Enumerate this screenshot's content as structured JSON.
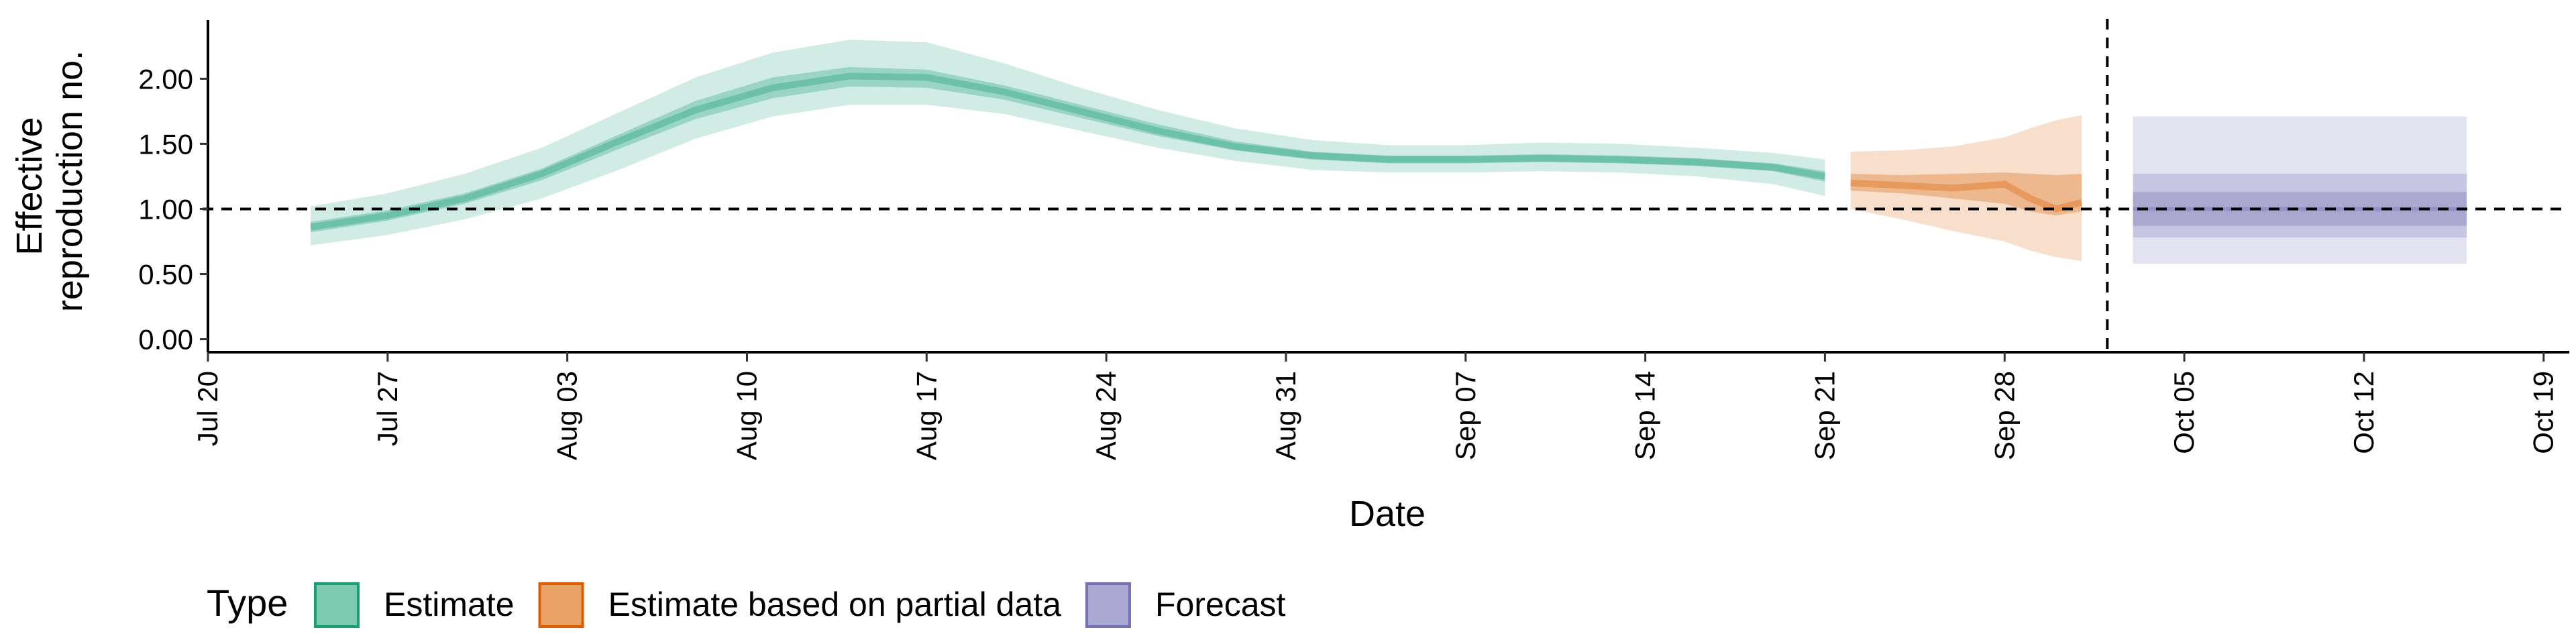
{
  "chart_data": {
    "type": "area",
    "title": "",
    "xlabel": "Date",
    "ylabel": "Effective\nreproduction no.",
    "ylabel_lines": [
      "Effective",
      "reproduction no."
    ],
    "x_ticks": [
      "2020-07-20",
      "2020-07-27",
      "2020-08-03",
      "2020-08-10",
      "2020-08-17",
      "2020-08-24",
      "2020-08-31",
      "2020-09-07",
      "2020-09-14",
      "2020-09-21",
      "2020-09-28",
      "2020-10-05",
      "2020-10-12",
      "2020-10-19"
    ],
    "x_tick_labels": [
      "Jul 20",
      "Jul 27",
      "Aug 03",
      "Aug 10",
      "Aug 17",
      "Aug 24",
      "Aug 31",
      "Sep 07",
      "Sep 14",
      "Sep 21",
      "Sep 28",
      "Oct 05",
      "Oct 12",
      "Oct 19"
    ],
    "y_ticks": [
      0,
      0.5,
      1.0,
      1.5,
      2.0
    ],
    "y_tick_labels": [
      "0.00",
      "0.50",
      "1.00",
      "1.50",
      "2.00"
    ],
    "xlim": [
      "2020-07-20",
      "2020-10-20"
    ],
    "ylim": [
      -0.1,
      2.45
    ],
    "reference_line_y": 1.0,
    "reference_line_x": "2020-10-02",
    "grid": false,
    "legend": {
      "title": "Type",
      "position": "bottom",
      "entries": [
        "Estimate",
        "Estimate based on partial data",
        "Forecast"
      ]
    },
    "colors": {
      "Estimate": "#1b9e77",
      "Estimate based on partial data": "#d95f02",
      "Forecast": "#7570b3"
    },
    "series": [
      {
        "name": "Estimate",
        "x": [
          "2020-07-24",
          "2020-07-27",
          "2020-07-30",
          "2020-08-02",
          "2020-08-05",
          "2020-08-08",
          "2020-08-11",
          "2020-08-14",
          "2020-08-17",
          "2020-08-20",
          "2020-08-23",
          "2020-08-26",
          "2020-08-29",
          "2020-09-01",
          "2020-09-04",
          "2020-09-07",
          "2020-09-10",
          "2020-09-13",
          "2020-09-16",
          "2020-09-19",
          "2020-09-21"
        ],
        "median": [
          0.86,
          0.95,
          1.08,
          1.27,
          1.52,
          1.76,
          1.93,
          2.02,
          2.01,
          1.9,
          1.75,
          1.6,
          1.48,
          1.41,
          1.38,
          1.38,
          1.39,
          1.38,
          1.36,
          1.32,
          1.25
        ],
        "lower_50": [
          0.82,
          0.91,
          1.04,
          1.22,
          1.46,
          1.69,
          1.85,
          1.94,
          1.93,
          1.84,
          1.7,
          1.56,
          1.45,
          1.38,
          1.35,
          1.35,
          1.36,
          1.35,
          1.33,
          1.29,
          1.21
        ],
        "upper_50": [
          0.9,
          0.99,
          1.12,
          1.31,
          1.57,
          1.83,
          2.01,
          2.09,
          2.07,
          1.95,
          1.8,
          1.65,
          1.52,
          1.44,
          1.41,
          1.41,
          1.42,
          1.41,
          1.39,
          1.35,
          1.29
        ],
        "lower_90": [
          0.72,
          0.8,
          0.92,
          1.08,
          1.3,
          1.54,
          1.71,
          1.8,
          1.8,
          1.73,
          1.6,
          1.47,
          1.37,
          1.3,
          1.28,
          1.28,
          1.29,
          1.28,
          1.25,
          1.19,
          1.1
        ],
        "upper_90": [
          1.02,
          1.12,
          1.27,
          1.47,
          1.74,
          2.01,
          2.2,
          2.3,
          2.28,
          2.12,
          1.93,
          1.76,
          1.62,
          1.53,
          1.49,
          1.49,
          1.51,
          1.5,
          1.47,
          1.43,
          1.38
        ]
      },
      {
        "name": "Estimate based on partial data",
        "x": [
          "2020-09-22",
          "2020-09-24",
          "2020-09-26",
          "2020-09-28",
          "2020-09-29",
          "2020-09-30",
          "2020-10-01"
        ],
        "median": [
          1.2,
          1.18,
          1.16,
          1.19,
          1.08,
          1.0,
          1.05
        ],
        "lower_50": [
          1.14,
          1.12,
          1.08,
          1.04,
          0.98,
          0.95,
          0.98
        ],
        "upper_50": [
          1.27,
          1.26,
          1.27,
          1.28,
          1.27,
          1.26,
          1.27
        ],
        "lower_90": [
          1.0,
          0.92,
          0.83,
          0.75,
          0.68,
          0.63,
          0.6
        ],
        "upper_90": [
          1.44,
          1.45,
          1.48,
          1.55,
          1.62,
          1.68,
          1.72
        ]
      },
      {
        "name": "Forecast",
        "x": [
          "2020-10-03",
          "2020-10-16"
        ],
        "median": [
          1.0,
          1.0
        ],
        "lower_50": [
          0.87,
          0.87
        ],
        "upper_50": [
          1.13,
          1.13
        ],
        "lower_75": [
          0.78,
          0.78
        ],
        "upper_75": [
          1.27,
          1.27
        ],
        "lower_90": [
          0.58,
          0.58
        ],
        "upper_90": [
          1.71,
          1.71
        ]
      }
    ]
  }
}
